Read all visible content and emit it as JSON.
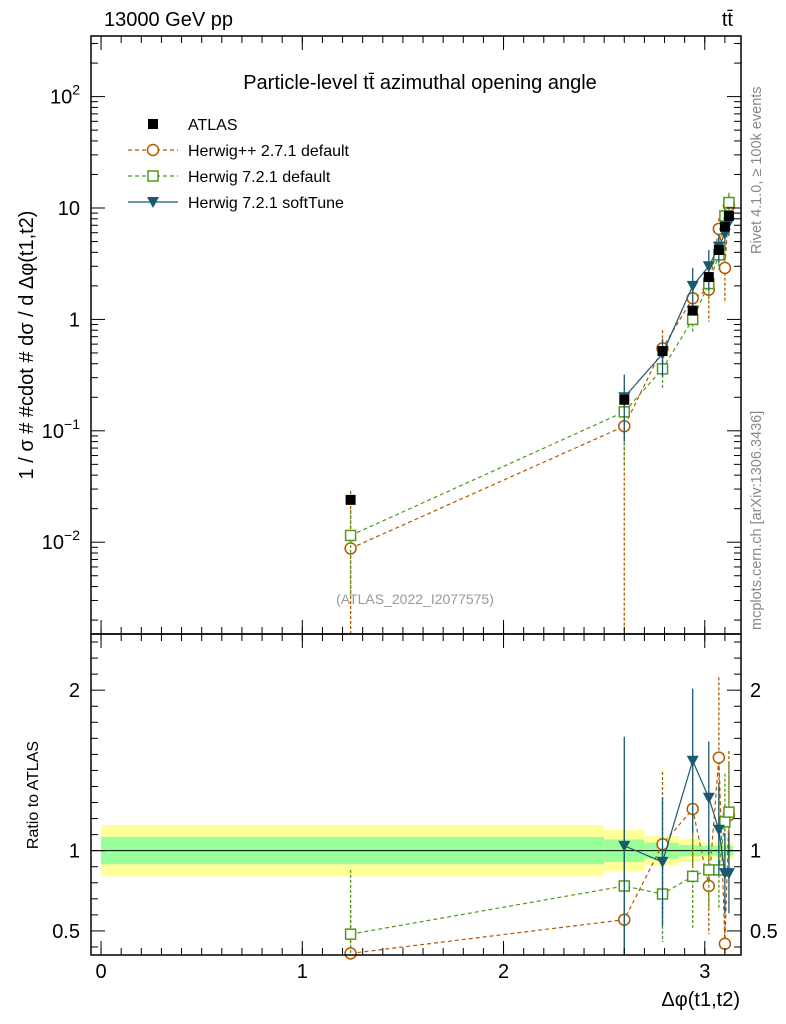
{
  "header": {
    "energy_label": "13000 GeV pp",
    "process_label": "tt̄"
  },
  "side": {
    "rivet_label": "Rivet 4.1.0, ≥ 100k events",
    "mcplots_label": "mcplots.cern.ch [arXiv:1306.3436]"
  },
  "colors": {
    "atlas": "#000000",
    "herwigpp": "#b35900",
    "herwig721": "#4f9a1c",
    "softtune": "#1b5a6e",
    "band_inner": "#99ff99",
    "band_outer": "#ffff99"
  },
  "chart_data": [
    {
      "type": "scatter",
      "title": "Particle-level tt̄ azimuthal opening angle",
      "analysis_label": "(ATLAS_2022_I2077575)",
      "ylabel": "1 / σ # #cdot # dσ / d Δφ(t1,t2)",
      "yscale": "log",
      "ylim": [
        0.0015,
        350
      ],
      "xlim": [
        -0.05,
        3.18
      ],
      "y_ticks": [
        {
          "value": 0.01,
          "base": "10",
          "exp": "−2"
        },
        {
          "value": 0.1,
          "base": "10",
          "exp": "−1"
        },
        {
          "value": 1,
          "label": "1"
        },
        {
          "value": 10,
          "label": "10"
        },
        {
          "value": 100,
          "base": "10",
          "exp": "2"
        }
      ],
      "legend": [
        "ATLAS",
        "Herwig++ 2.7.1 default",
        "Herwig 7.2.1 default",
        "Herwig 7.2.1 softTune"
      ],
      "series": [
        {
          "name": "ATLAS",
          "marker": "square-filled",
          "x": [
            1.24,
            2.6,
            2.79,
            2.94,
            3.02,
            3.07,
            3.1,
            3.12
          ],
          "y": [
            0.024,
            0.19,
            0.52,
            1.2,
            2.4,
            4.2,
            6.8,
            8.5
          ],
          "err": [
            0,
            0,
            0,
            0,
            0,
            0,
            0,
            0
          ]
        },
        {
          "name": "Herwig++ 2.7.1 default",
          "marker": "circle-open",
          "dash": "dashed",
          "x": [
            1.24,
            2.6,
            2.79,
            2.94,
            3.02,
            3.07,
            3.1,
            3.12
          ],
          "y": [
            0.0088,
            0.11,
            0.55,
            1.55,
            1.85,
            6.5,
            2.9,
            10.5
          ],
          "err": [
            0.02,
            0.11,
            0.25,
            0.5,
            0.9,
            1.6,
            1.5,
            2.5
          ]
        },
        {
          "name": "Herwig 7.2.1 default",
          "marker": "square-open",
          "dash": "dashed",
          "x": [
            1.24,
            2.6,
            2.79,
            2.94,
            3.02,
            3.07,
            3.1,
            3.12
          ],
          "y": [
            0.0115,
            0.148,
            0.36,
            1.0,
            2.1,
            3.8,
            8.5,
            11.2
          ],
          "err": [
            0.008,
            0.1,
            0.12,
            0.25,
            0.6,
            1.0,
            2.0,
            2.5
          ]
        },
        {
          "name": "Herwig 7.2.1 softTune",
          "marker": "triangle-down-filled",
          "dash": "solid",
          "x": [
            2.6,
            2.79,
            2.94,
            3.02,
            3.07,
            3.1,
            3.12
          ],
          "y": [
            0.2,
            0.49,
            2.0,
            3.0,
            4.5,
            5.9,
            7.4
          ],
          "err": [
            0.12,
            0.18,
            0.9,
            1.2,
            1.3,
            1.6,
            1.8
          ]
        }
      ]
    },
    {
      "type": "scatter",
      "ylabel": "Ratio to ATLAS",
      "xlabel": "Δφ(t1,t2)",
      "xlim": [
        -0.05,
        3.18
      ],
      "ylim": [
        0.35,
        2.35
      ],
      "reference": 1,
      "x_ticks": [
        0,
        1,
        2,
        3
      ],
      "y_ticks": [
        0.5,
        1,
        2
      ],
      "bands": [
        {
          "x0": 0,
          "x1": 2.5,
          "inner": 0.085,
          "outer": 0.16
        },
        {
          "x0": 2.5,
          "x1": 2.7,
          "inner": 0.07,
          "outer": 0.13
        },
        {
          "x0": 2.7,
          "x1": 2.87,
          "inner": 0.05,
          "outer": 0.09
        },
        {
          "x0": 2.87,
          "x1": 2.98,
          "inner": 0.035,
          "outer": 0.07
        },
        {
          "x0": 2.98,
          "x1": 3.18,
          "inner": 0.03,
          "outer": 0.05
        }
      ],
      "series": [
        {
          "name": "Herwig++ 2.7.1 default",
          "marker": "circle-open",
          "dash": "dashed",
          "x": [
            1.24,
            2.6,
            2.79,
            2.94,
            3.02,
            3.07,
            3.1,
            3.12
          ],
          "y": [
            0.36,
            0.57,
            1.04,
            1.26,
            0.78,
            1.58,
            0.42,
            1.22
          ],
          "err": [
            0.3,
            0.55,
            0.45,
            0.35,
            0.3,
            0.5,
            0.3,
            0.4
          ]
        },
        {
          "name": "Herwig 7.2.1 default",
          "marker": "square-open",
          "dash": "dashed",
          "x": [
            1.24,
            2.6,
            2.79,
            2.94,
            3.02,
            3.07,
            3.1,
            3.12
          ],
          "y": [
            0.48,
            0.78,
            0.73,
            0.84,
            0.88,
            0.88,
            1.18,
            1.24
          ],
          "err": [
            0.4,
            0.6,
            0.3,
            0.32,
            0.25,
            0.25,
            0.3,
            0.3
          ]
        },
        {
          "name": "Herwig 7.2.1 softTune",
          "marker": "triangle-down-filled",
          "dash": "solid",
          "x": [
            2.6,
            2.79,
            2.94,
            3.02,
            3.07,
            3.1,
            3.12
          ],
          "y": [
            1.03,
            0.93,
            1.56,
            1.33,
            1.13,
            0.86,
            0.86
          ],
          "err": [
            0.68,
            0.4,
            0.45,
            0.35,
            0.28,
            0.25,
            0.25
          ]
        }
      ]
    }
  ]
}
